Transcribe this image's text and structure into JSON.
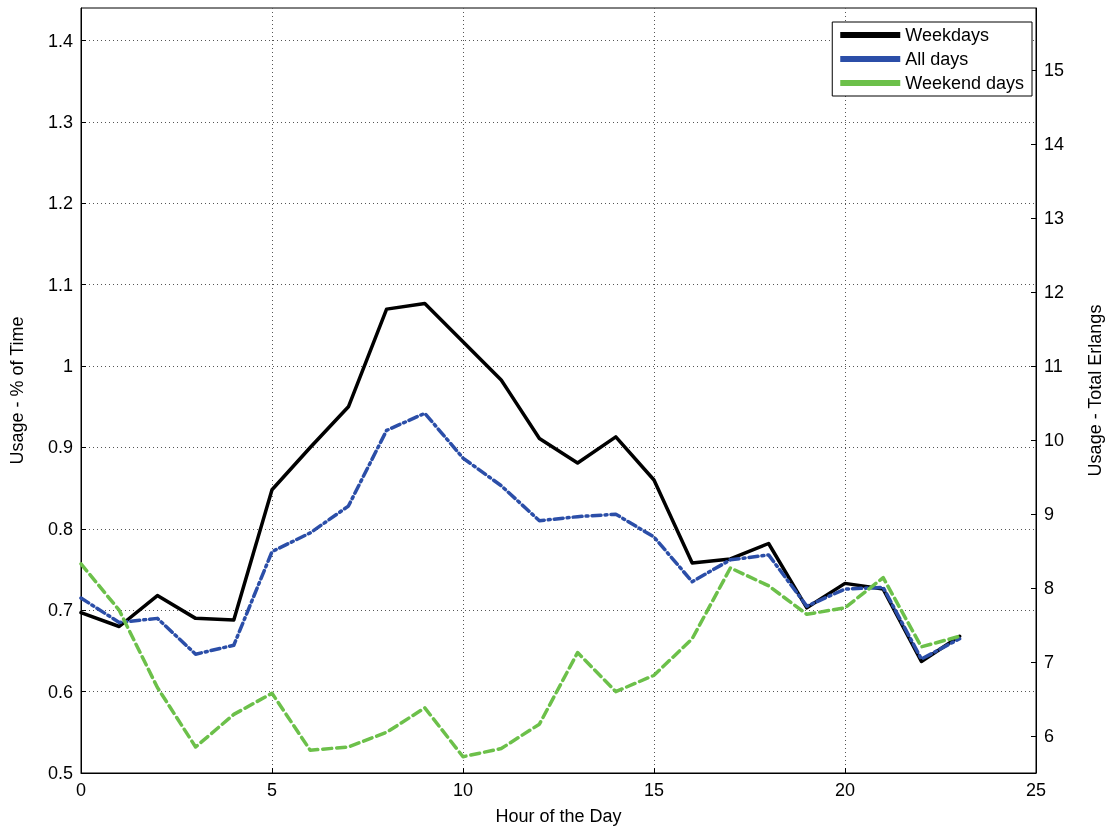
{
  "chart_data": {
    "type": "line",
    "xlabel": "Hour of the Day",
    "ylabel": "Usage - % of Time",
    "y2label": "Usage - Total Erlangs",
    "x": [
      0,
      1,
      2,
      3,
      4,
      5,
      6,
      7,
      8,
      9,
      10,
      11,
      12,
      13,
      14,
      15,
      16,
      17,
      18,
      19,
      20,
      21,
      22,
      23
    ],
    "series": [
      {
        "name": "Weekdays",
        "color": "#000000",
        "line_style": "solid",
        "values": [
          0.697,
          0.68,
          0.718,
          0.69,
          0.688,
          0.848,
          0.9,
          0.95,
          1.07,
          1.077,
          1.03,
          0.983,
          0.911,
          0.881,
          0.913,
          0.86,
          0.758,
          0.763,
          0.782,
          0.703,
          0.733,
          0.726,
          0.637,
          0.668
        ]
      },
      {
        "name": "All days",
        "color": "#2b4ea8",
        "line_style": "dashdot",
        "values": [
          0.715,
          0.685,
          0.69,
          0.646,
          0.657,
          0.772,
          0.795,
          0.828,
          0.921,
          0.942,
          0.887,
          0.853,
          0.81,
          0.815,
          0.818,
          0.79,
          0.735,
          0.762,
          0.768,
          0.705,
          0.726,
          0.728,
          0.64,
          0.665
        ]
      },
      {
        "name": "Weekend days",
        "color": "#6cc04a",
        "line_style": "dashed",
        "values": [
          0.757,
          0.7,
          0.605,
          0.532,
          0.572,
          0.598,
          0.528,
          0.532,
          0.55,
          0.58,
          0.52,
          0.53,
          0.56,
          0.648,
          0.6,
          0.62,
          0.665,
          0.752,
          0.73,
          0.695,
          0.703,
          0.74,
          0.655,
          0.668
        ]
      }
    ],
    "xlim": [
      0,
      25
    ],
    "xticks": [
      0,
      5,
      10,
      15,
      20,
      25
    ],
    "ylim": [
      0.5,
      1.44
    ],
    "yticks": [
      0.5,
      0.6,
      0.7,
      0.8,
      0.9,
      1,
      1.1,
      1.2,
      1.3,
      1.4
    ],
    "y2lim": [
      5.5,
      15.84
    ],
    "y2ticks": [
      6,
      7,
      8,
      9,
      10,
      11,
      12,
      13,
      14,
      15
    ],
    "grid": true,
    "legend": "top right",
    "marker": "none"
  }
}
